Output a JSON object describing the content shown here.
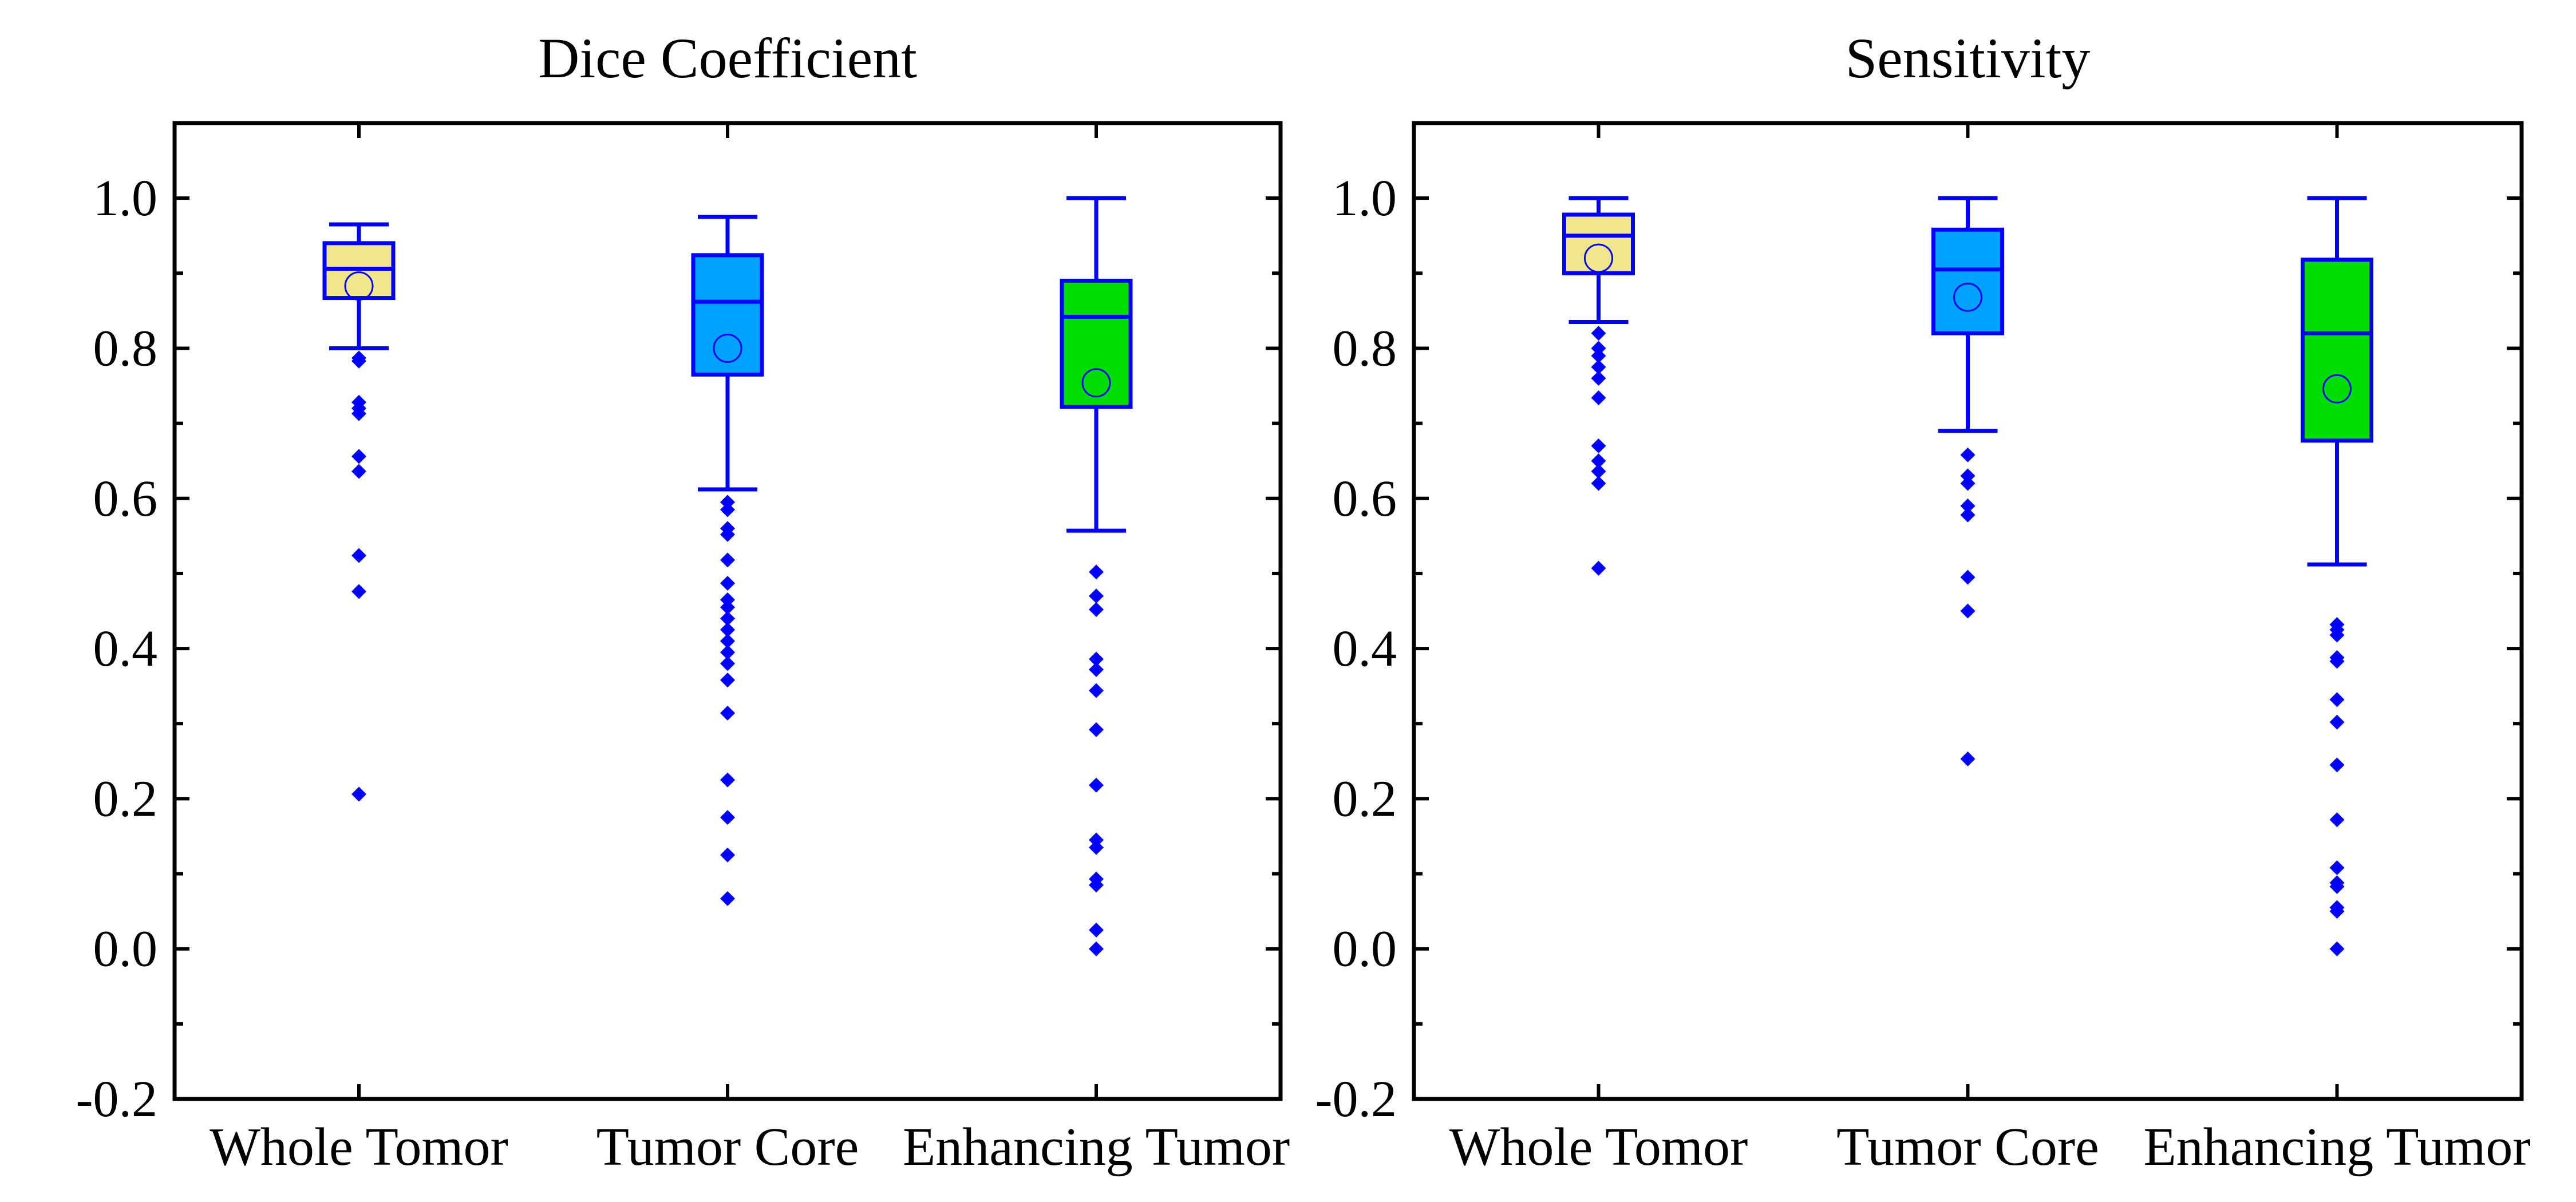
{
  "chart_data": [
    {
      "type": "box",
      "title": "Dice Coefficient",
      "categories": [
        "Whole Tomor",
        "Tumor Core",
        "Enhancing Tumor"
      ],
      "ylim": [
        -0.2,
        1.1
      ],
      "yticks": [
        -0.2,
        0.0,
        0.2,
        0.4,
        0.6,
        0.8,
        1.0
      ],
      "ytick_labels": [
        "-0.2",
        "0.0",
        "0.2",
        "0.4",
        "0.6",
        "0.8",
        "1.0"
      ],
      "grid": false,
      "boxes": [
        {
          "category": "Whole Tomor",
          "whisker_low": 0.8,
          "q1": 0.867,
          "median": 0.906,
          "q3": 0.94,
          "whisker_high": 0.965,
          "mean": 0.883,
          "color": "#f0e68c",
          "outliers": [
            0.787,
            0.783,
            0.728,
            0.72,
            0.713,
            0.656,
            0.636,
            0.524,
            0.476,
            0.206
          ]
        },
        {
          "category": "Tumor Core",
          "whisker_low": 0.612,
          "q1": 0.765,
          "median": 0.862,
          "q3": 0.924,
          "whisker_high": 0.975,
          "mean": 0.8,
          "color": "#00a2ff",
          "outliers": [
            0.595,
            0.585,
            0.56,
            0.552,
            0.518,
            0.487,
            0.465,
            0.455,
            0.44,
            0.425,
            0.41,
            0.395,
            0.38,
            0.358,
            0.314,
            0.225,
            0.175,
            0.125,
            0.067
          ]
        },
        {
          "category": "Enhancing Tumor",
          "whisker_low": 0.557,
          "q1": 0.722,
          "median": 0.842,
          "q3": 0.89,
          "whisker_high": 1.0,
          "mean": 0.754,
          "color": "#00dd00",
          "outliers": [
            0.502,
            0.47,
            0.452,
            0.386,
            0.372,
            0.344,
            0.292,
            0.218,
            0.145,
            0.135,
            0.093,
            0.085,
            0.025,
            0.0
          ]
        }
      ]
    },
    {
      "type": "box",
      "title": "Sensitivity",
      "categories": [
        "Whole Tomor",
        "Tumor Core",
        "Enhancing Tumor"
      ],
      "ylim": [
        -0.2,
        1.1
      ],
      "yticks": [
        -0.2,
        0.0,
        0.2,
        0.4,
        0.6,
        0.8,
        1.0
      ],
      "ytick_labels": [
        "-0.2",
        "0.0",
        "0.2",
        "0.4",
        "0.6",
        "0.8",
        "1.0"
      ],
      "grid": false,
      "boxes": [
        {
          "category": "Whole Tomor",
          "whisker_low": 0.835,
          "q1": 0.9,
          "median": 0.95,
          "q3": 0.978,
          "whisker_high": 1.0,
          "mean": 0.92,
          "color": "#f0e68c",
          "outliers": [
            0.82,
            0.8,
            0.79,
            0.775,
            0.76,
            0.734,
            0.67,
            0.65,
            0.636,
            0.62,
            0.507
          ]
        },
        {
          "category": "Tumor Core",
          "whisker_low": 0.69,
          "q1": 0.82,
          "median": 0.905,
          "q3": 0.958,
          "whisker_high": 1.0,
          "mean": 0.868,
          "color": "#00a2ff",
          "outliers": [
            0.658,
            0.63,
            0.62,
            0.59,
            0.578,
            0.495,
            0.45,
            0.253
          ]
        },
        {
          "category": "Enhancing Tumor",
          "whisker_low": 0.512,
          "q1": 0.677,
          "median": 0.82,
          "q3": 0.918,
          "whisker_high": 1.0,
          "mean": 0.746,
          "color": "#00dd00",
          "outliers": [
            0.432,
            0.425,
            0.418,
            0.388,
            0.383,
            0.332,
            0.302,
            0.245,
            0.172,
            0.108,
            0.088,
            0.083,
            0.055,
            0.05,
            0.0
          ]
        }
      ]
    }
  ],
  "style": {
    "line_color": "#0000ff",
    "outlier_color": "#0000ff",
    "axis_color": "#000000"
  }
}
